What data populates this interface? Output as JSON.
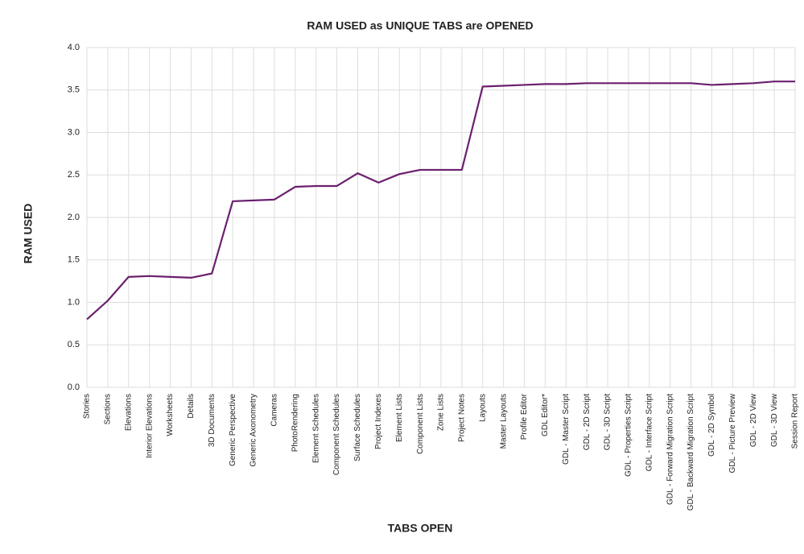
{
  "chart_data": {
    "type": "line",
    "title": "RAM USED as UNIQUE TABS are OPENED",
    "x_label": "TABS OPEN",
    "y_label": "RAM USED",
    "categories": [
      "Stories",
      "Sections",
      "Elevations",
      "Interior Elevations",
      "Worksheets",
      "Details",
      "3D Documents",
      "Generic Perspective",
      "Generic Axonometry",
      "Cameras",
      "PhotoRendering",
      "Element Schedules",
      "Component Schedules",
      "Surface Schedules",
      "Project Indexes",
      "Element Lists",
      "Component Lists",
      "Zone Lists",
      "Project Notes",
      "Layouts",
      "Master Layouts",
      "Profile Editor",
      "GDL Editor*",
      "GDL - Master Script",
      "GDL - 2D Script",
      "GDL - 3D Script",
      "GDL - Properties Script",
      "GDL - Interface Script",
      "GDL - Forward Migration Script",
      "GDL - Backward Migration Script",
      "GDL - 2D Symbol",
      "GDL - Picture Preview",
      "GDL - 2D View",
      "GDL - 3D View",
      "Session Report"
    ],
    "values": [
      0.8,
      1.02,
      1.3,
      1.31,
      1.3,
      1.29,
      1.34,
      2.19,
      2.2,
      2.21,
      2.36,
      2.37,
      2.37,
      2.52,
      2.41,
      2.51,
      2.56,
      2.56,
      2.56,
      3.54,
      3.55,
      3.56,
      3.57,
      3.57,
      3.58,
      3.58,
      3.58,
      3.58,
      3.58,
      3.58,
      3.56,
      3.57,
      3.58,
      3.6,
      3.6
    ],
    "color": "#6b1f6e",
    "ylim": [
      0,
      4
    ],
    "yticks": [
      {
        "value": 0,
        "label": "0.0"
      },
      {
        "value": 0.5,
        "label": "0.5"
      },
      {
        "value": 1,
        "label": "1.0"
      },
      {
        "value": 1.5,
        "label": "1.5"
      },
      {
        "value": 2,
        "label": "2.0"
      },
      {
        "value": 2.5,
        "label": "2.5"
      },
      {
        "value": 3,
        "label": "3.0"
      },
      {
        "value": 3.5,
        "label": "3.5"
      },
      {
        "value": 4,
        "label": "4.0"
      }
    ],
    "grid": true
  }
}
